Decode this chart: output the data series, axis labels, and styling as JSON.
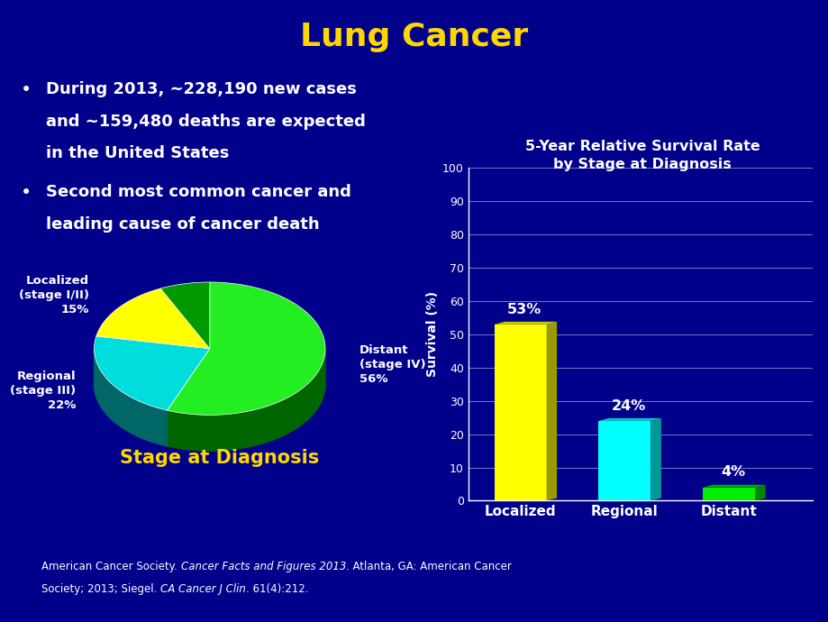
{
  "title": "Lung Cancer",
  "title_color": "#FFD700",
  "bg_color": "#00008B",
  "bullet1_lines": [
    "During 2013, ~228,190 new cases",
    "and ~159,480 deaths are expected",
    "in the United States"
  ],
  "bullet2_lines": [
    "Second most common cancer and",
    "leading cause of cancer death"
  ],
  "pie_values": [
    56,
    22,
    15,
    7
  ],
  "pie_colors_top": [
    "#22EE22",
    "#00DDDD",
    "#FFFF00",
    "#009900"
  ],
  "pie_colors_side": [
    "#006600",
    "#006666",
    "#888800",
    "#003300"
  ],
  "pie_label_texts": [
    "Distant\n(stage IV)\n56%",
    "Regional\n(stage III)\n22%",
    "Localized\n(stage I/II)\n15%"
  ],
  "pie_title": "Stage at Diagnosis",
  "pie_title_color": "#FFD700",
  "bar_categories": [
    "Localized",
    "Regional",
    "Distant"
  ],
  "bar_values": [
    53,
    24,
    4
  ],
  "bar_colors_front": [
    "#FFFF00",
    "#00FFFF",
    "#00EE00"
  ],
  "bar_colors_side": [
    "#999900",
    "#009999",
    "#008800"
  ],
  "bar_colors_top": [
    "#CCCC00",
    "#00CCCC",
    "#00AA00"
  ],
  "bar_label_texts": [
    "53%",
    "24%",
    "4%"
  ],
  "bar_chart_title": "5-Year Relative Survival Rate\nby Stage at Diagnosis",
  "bar_ylabel": "Survival (%)",
  "bar_yticks": [
    0,
    10,
    20,
    30,
    40,
    50,
    60,
    70,
    80,
    90,
    100
  ],
  "footnote": [
    [
      [
        "American Cancer Society. ",
        false
      ],
      [
        "Cancer Facts and Figures 2013",
        true
      ],
      [
        ". Atlanta, GA: American Cancer",
        false
      ]
    ],
    [
      [
        "Society; 2013; Siegel. ",
        false
      ],
      [
        "CA Cancer J Clin",
        true
      ],
      [
        ". 61(4):212.",
        false
      ]
    ]
  ],
  "text_color": "#FFFFFF"
}
